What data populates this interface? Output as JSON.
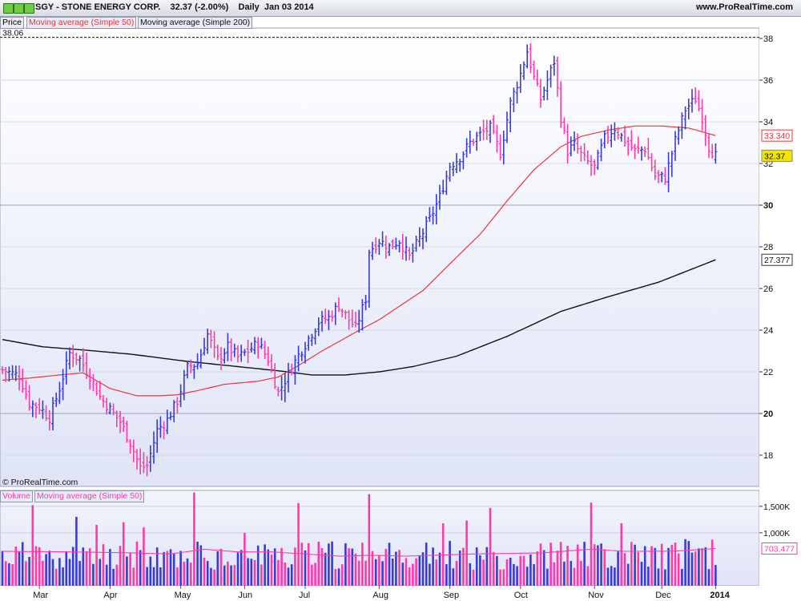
{
  "header": {
    "title": "SGY - STONE ENERGY CORP.    32.37 (-2.00%)    Daily  Jan 03 2014",
    "site": "www.ProRealTime.com"
  },
  "legends": {
    "price": "Price",
    "ma50": "Moving average (Simple 50)",
    "ma200": "Moving average (Simple 200)",
    "volume": "Volume",
    "vol_ma": "Moving average (Simple 50)"
  },
  "copyright": "© ProRealTime.com",
  "colors": {
    "up": "#3a3ad6",
    "down": "#ff3aa8",
    "ma50": "#e8363a",
    "ma200": "#111111",
    "vol_ma": "#ff3aa8",
    "plot_bg_top": "#ffffff",
    "plot_bg_bottom": "#dfe4f6"
  },
  "chart_data": [
    {
      "type": "ohlc",
      "y_axis_ticks": [
        "18",
        "20",
        "22",
        "24",
        "26",
        "28",
        "30",
        "32",
        "34",
        "36",
        "38"
      ],
      "bold_ticks": [
        "20",
        "30"
      ],
      "ylim": [
        16.5,
        38.5
      ],
      "x_labels": [
        "Mar",
        "Apr",
        "May",
        "Jun",
        "Jul",
        "Aug",
        "Sep",
        "Oct",
        "Nov",
        "Dec",
        "2014"
      ],
      "reference_line": {
        "value": 38.06,
        "label": "38.06"
      },
      "badges": [
        {
          "label": "33.340",
          "value": 33.34,
          "series": "ma50"
        },
        {
          "label": "32.37",
          "value": 32.37,
          "series": "last"
        },
        {
          "label": "27.377",
          "value": 27.377,
          "series": "ma200"
        }
      ],
      "anchors": [
        [
          0,
          22.1
        ],
        [
          5,
          21.8
        ],
        [
          8,
          20.5
        ],
        [
          11,
          20.3
        ],
        [
          14,
          19.8
        ],
        [
          17,
          21.2
        ],
        [
          20,
          22.9
        ],
        [
          23,
          22.6
        ],
        [
          26,
          21.8
        ],
        [
          29,
          20.8
        ],
        [
          32,
          20.2
        ],
        [
          35,
          19.6
        ],
        [
          38,
          18.6
        ],
        [
          41,
          17.4
        ],
        [
          43,
          17.5
        ],
        [
          46,
          19.2
        ],
        [
          49,
          19.7
        ],
        [
          52,
          20.6
        ],
        [
          55,
          22.2
        ],
        [
          58,
          22.4
        ],
        [
          61,
          23.8
        ],
        [
          64,
          22.6
        ],
        [
          67,
          23.2
        ],
        [
          70,
          22.7
        ],
        [
          73,
          23.0
        ],
        [
          76,
          23.4
        ],
        [
          79,
          22.6
        ],
        [
          82,
          21.0
        ],
        [
          85,
          21.9
        ],
        [
          88,
          22.8
        ],
        [
          91,
          23.6
        ],
        [
          94,
          24.4
        ],
        [
          97,
          24.6
        ],
        [
          100,
          25.2
        ],
        [
          103,
          24.5
        ],
        [
          105,
          24.1
        ],
        [
          108,
          25.5
        ],
        [
          109,
          27.8
        ],
        [
          112,
          28.3
        ],
        [
          115,
          28.0
        ],
        [
          118,
          28.3
        ],
        [
          121,
          27.5
        ],
        [
          124,
          28.4
        ],
        [
          127,
          29.3
        ],
        [
          130,
          30.4
        ],
        [
          133,
          31.9
        ],
        [
          136,
          32.3
        ],
        [
          139,
          33.0
        ],
        [
          142,
          33.4
        ],
        [
          145,
          33.7
        ],
        [
          148,
          32.5
        ],
        [
          151,
          34.9
        ],
        [
          154,
          36.3
        ],
        [
          156,
          37.4
        ],
        [
          158,
          36.1
        ],
        [
          160,
          35.1
        ],
        [
          162,
          36.0
        ],
        [
          164,
          36.9
        ],
        [
          166,
          34.2
        ],
        [
          168,
          32.6
        ],
        [
          170,
          32.9
        ],
        [
          173,
          32.2
        ],
        [
          176,
          31.8
        ],
        [
          179,
          33.2
        ],
        [
          182,
          33.7
        ],
        [
          185,
          33.1
        ],
        [
          188,
          32.6
        ],
        [
          191,
          32.7
        ],
        [
          194,
          31.4
        ],
        [
          197,
          31.3
        ],
        [
          200,
          33.1
        ],
        [
          203,
          34.6
        ],
        [
          206,
          35.1
        ],
        [
          208,
          34.2
        ],
        [
          210,
          32.8
        ],
        [
          212,
          32.37
        ]
      ],
      "ma50_anchors": [
        [
          0,
          21.6
        ],
        [
          8,
          21.7
        ],
        [
          17,
          21.85
        ],
        [
          24,
          21.95
        ],
        [
          32,
          21.2
        ],
        [
          40,
          20.85
        ],
        [
          47,
          20.85
        ],
        [
          52,
          20.9
        ],
        [
          58,
          21.1
        ],
        [
          66,
          21.4
        ],
        [
          76,
          21.55
        ],
        [
          82,
          21.75
        ],
        [
          88,
          22.3
        ],
        [
          95,
          23.0
        ],
        [
          105,
          23.9
        ],
        [
          112,
          24.5
        ],
        [
          125,
          25.9
        ],
        [
          135,
          27.5
        ],
        [
          142,
          28.6
        ],
        [
          150,
          30.2
        ],
        [
          158,
          31.7
        ],
        [
          166,
          32.8
        ],
        [
          172,
          33.3
        ],
        [
          180,
          33.6
        ],
        [
          188,
          33.8
        ],
        [
          196,
          33.8
        ],
        [
          204,
          33.7
        ],
        [
          212,
          33.34
        ]
      ],
      "ma200_anchors": [
        [
          0,
          23.55
        ],
        [
          12,
          23.2
        ],
        [
          24,
          23.05
        ],
        [
          38,
          22.85
        ],
        [
          55,
          22.5
        ],
        [
          70,
          22.25
        ],
        [
          82,
          22.05
        ],
        [
          92,
          21.85
        ],
        [
          102,
          21.85
        ],
        [
          112,
          22.0
        ],
        [
          122,
          22.25
        ],
        [
          135,
          22.75
        ],
        [
          150,
          23.7
        ],
        [
          166,
          24.9
        ],
        [
          180,
          25.6
        ],
        [
          195,
          26.3
        ],
        [
          212,
          27.377
        ]
      ]
    },
    {
      "type": "bar",
      "name": "Volume",
      "y_axis_ticks": [
        "1,000K",
        "1,500K"
      ],
      "ylim": [
        0,
        1800
      ],
      "badge": {
        "label": "703,477",
        "value": 703.477
      },
      "ma_anchors": [
        [
          0,
          650
        ],
        [
          20,
          640
        ],
        [
          40,
          620
        ],
        [
          50,
          600
        ],
        [
          60,
          690
        ],
        [
          70,
          640
        ],
        [
          80,
          640
        ],
        [
          90,
          600
        ],
        [
          100,
          560
        ],
        [
          110,
          575
        ],
        [
          120,
          560
        ],
        [
          130,
          580
        ],
        [
          140,
          600
        ],
        [
          160,
          620
        ],
        [
          175,
          690
        ],
        [
          185,
          650
        ],
        [
          200,
          655
        ],
        [
          212,
          703.477
        ]
      ],
      "spikes": [
        [
          9,
          1520
        ],
        [
          22,
          1300
        ],
        [
          28,
          1150
        ],
        [
          36,
          1200
        ],
        [
          42,
          1100
        ],
        [
          57,
          1760
        ],
        [
          72,
          1000
        ],
        [
          88,
          1560
        ],
        [
          109,
          1730
        ],
        [
          131,
          1180
        ],
        [
          138,
          1230
        ],
        [
          145,
          1470
        ],
        [
          175,
          1570
        ],
        [
          184,
          1180
        ],
        [
          203,
          880
        ],
        [
          211,
          870
        ]
      ]
    }
  ]
}
